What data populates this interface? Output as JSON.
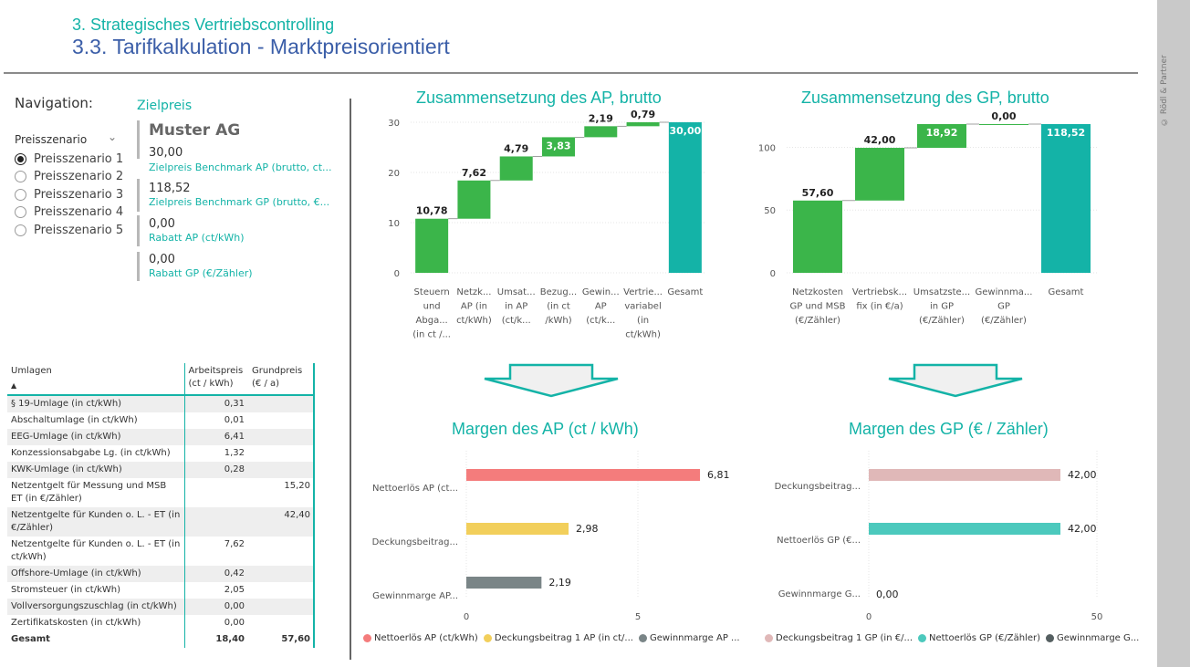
{
  "header": {
    "subtitle": "3. Strategisches Vertriebscontrolling",
    "title": "3.3. Tarifkalkulation - Marktpreisorientiert"
  },
  "copyright": "© Rödl & Partner",
  "navigation": {
    "label": "Navigation:",
    "slicer_title": "Preisszenario",
    "options": [
      "Preisszenario 1",
      "Preisszenario 2",
      "Preisszenario 3",
      "Preisszenario 4",
      "Preisszenario 5"
    ],
    "selected": "Preisszenario 1"
  },
  "zielpreis": {
    "title": "Zielpreis",
    "company": "Muster AG",
    "items": [
      {
        "value": "30,00",
        "label": "Zielpreis Benchmark AP (brutto, ct..."
      },
      {
        "value": "118,52",
        "label": "Zielpreis Benchmark GP (brutto, €..."
      },
      {
        "value": "0,00",
        "label": "Rabatt AP (ct/kWh)"
      },
      {
        "value": "0,00",
        "label": "Rabatt GP (€/Zähler)"
      }
    ]
  },
  "umlagen_table": {
    "headers": [
      "Umlagen",
      "Arbeitspreis (ct / kWh)",
      "Grundpreis (€ / a)"
    ],
    "rows": [
      {
        "name": "§ 19-Umlage (in ct/kWh)",
        "ap": "0,31",
        "gp": ""
      },
      {
        "name": "Abschaltumlage (in ct/kWh)",
        "ap": "0,01",
        "gp": ""
      },
      {
        "name": "EEG-Umlage (in ct/kWh)",
        "ap": "6,41",
        "gp": ""
      },
      {
        "name": "Konzessionsabgabe Lg. (in ct/kWh)",
        "ap": "1,32",
        "gp": ""
      },
      {
        "name": "KWK-Umlage (in ct/kWh)",
        "ap": "0,28",
        "gp": ""
      },
      {
        "name": "Netzentgelt für Messung und MSB ET (in €/Zähler)",
        "ap": "",
        "gp": "15,20"
      },
      {
        "name": "Netzentgelte für Kunden o. L. - ET (in €/Zähler)",
        "ap": "",
        "gp": "42,40"
      },
      {
        "name": "Netzentgelte für Kunden o. L. - ET (in ct/kWh)",
        "ap": "7,62",
        "gp": ""
      },
      {
        "name": "Offshore-Umlage (in ct/kWh)",
        "ap": "0,42",
        "gp": ""
      },
      {
        "name": "Stromsteuer (in ct/kWh)",
        "ap": "2,05",
        "gp": ""
      },
      {
        "name": "Vollversorgungszuschlag (in ct/kWh)",
        "ap": "0,00",
        "gp": ""
      },
      {
        "name": "Zertifikatskosten (in ct/kWh)",
        "ap": "0,00",
        "gp": ""
      }
    ],
    "total": {
      "name": "Gesamt",
      "ap": "18,40",
      "gp": "57,60"
    }
  },
  "chart_data": [
    {
      "type": "waterfall",
      "title": "Zusammensetzung des AP, brutto",
      "ylim": [
        0,
        30
      ],
      "yticks": [
        0,
        10,
        20,
        30
      ],
      "categories": [
        [
          "Steuern",
          "und",
          "Abga...",
          "(in ct /..."
        ],
        [
          "Netzk...",
          "AP (in",
          "ct/kWh)"
        ],
        [
          "Umsat...",
          "in AP",
          "(ct/k..."
        ],
        [
          "Bezug...",
          "(in ct",
          "/kWh)"
        ],
        [
          "Gewin...",
          "AP",
          "(ct/k..."
        ],
        [
          "Vertrie...",
          "variabel",
          "(in",
          "ct/kWh)"
        ],
        [
          "Gesamt"
        ]
      ],
      "values": [
        10.78,
        7.62,
        4.79,
        3.83,
        2.19,
        0.79,
        30.0
      ],
      "labels": [
        "10,78",
        "7,62",
        "4,79",
        "3,83",
        "2,19",
        "0,79",
        "30,00"
      ],
      "total_index": 6,
      "colors": {
        "increase": "#3bb54a",
        "total": "#14b3a7"
      }
    },
    {
      "type": "waterfall",
      "title": "Zusammensetzung des GP, brutto",
      "ylim": [
        0,
        118.52
      ],
      "yticks": [
        0,
        50,
        100
      ],
      "categories": [
        [
          "Netzkosten",
          "GP und MSB",
          "(€/Zähler)"
        ],
        [
          "Vertriebsk...",
          "fix (in €/a)"
        ],
        [
          "Umsatzste...",
          "in GP",
          "(€/Zähler)"
        ],
        [
          "Gewinnma...",
          "GP",
          "(€/Zähler)"
        ],
        [
          "Gesamt"
        ]
      ],
      "values": [
        57.6,
        42.0,
        18.92,
        0.0,
        118.52
      ],
      "labels": [
        "57,60",
        "42,00",
        "18,92",
        "0,00",
        "118,52"
      ],
      "total_index": 4,
      "colors": {
        "increase": "#3bb54a",
        "total": "#14b3a7"
      }
    },
    {
      "type": "bar",
      "orientation": "horizontal",
      "title": "Margen des AP (ct / kWh)",
      "xlim": [
        0,
        10
      ],
      "xticks": [
        0,
        5
      ],
      "categories": [
        "Nettoerlös AP (ct...",
        "Deckungsbeitrag...",
        "Gewinnmarge AP..."
      ],
      "values": [
        6.81,
        2.98,
        2.19
      ],
      "labels": [
        "6,81",
        "2,98",
        "2,19"
      ],
      "colors": [
        "#f47c7c",
        "#f2cf5b",
        "#7a8587"
      ],
      "legend": [
        "Nettoerlös AP (ct/kWh)",
        "Deckungsbeitrag 1 AP (in ct/...",
        "Gewinnmarge AP ..."
      ]
    },
    {
      "type": "bar",
      "orientation": "horizontal",
      "title": "Margen des GP (€ / Zähler)",
      "xlim": [
        0,
        50
      ],
      "xticks": [
        0,
        50
      ],
      "categories": [
        "Deckungsbeitrag...",
        "Nettoerlös GP (€...",
        "Gewinnmarge G..."
      ],
      "values": [
        42.0,
        42.0,
        0.0
      ],
      "labels": [
        "42,00",
        "42,00",
        "0,00"
      ],
      "colors": [
        "#e0b8b8",
        "#4cc9bd",
        "#555f61"
      ],
      "legend": [
        "Deckungsbeitrag 1 GP (in €/...",
        "Nettoerlös GP  (€/Zähler)",
        "Gewinnmarge G..."
      ]
    }
  ]
}
